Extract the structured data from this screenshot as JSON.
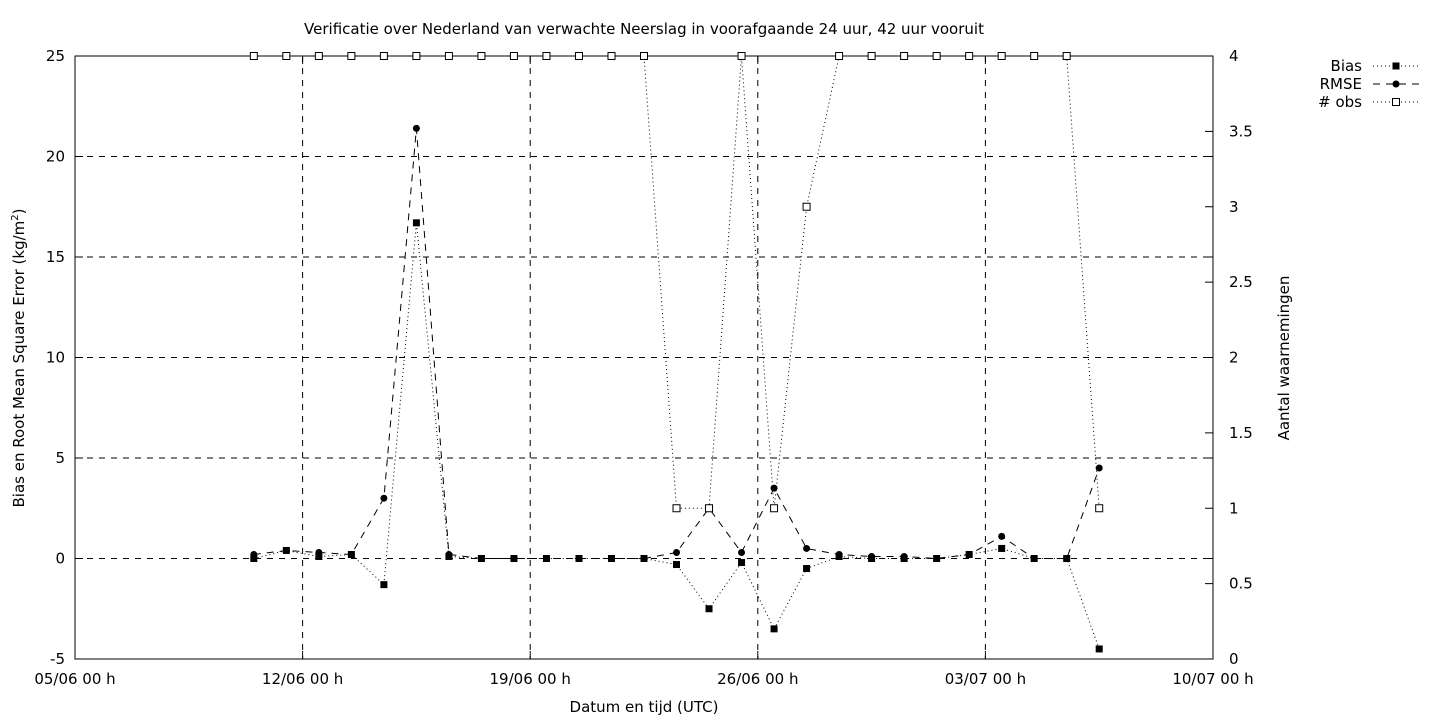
{
  "chart_data": {
    "type": "line",
    "title": "Verificatie over Nederland van verwachte Neerslag in voorafgaande 24 uur, 42 uur vooruit",
    "xlabel": "Datum en tijd (UTC)",
    "ylabel": "Bias en Root Mean Square Error (kg/m",
    "ylabel_sup": "2",
    "ylabel_close": ")",
    "y2label": "Aantal waarnemingen",
    "x_ticks": [
      "05/06 00 h",
      "12/06 00 h",
      "19/06 00 h",
      "26/06 00 h",
      "03/07 00 h",
      "10/07 00 h"
    ],
    "x_tick_days": [
      0,
      7,
      14,
      21,
      28,
      35
    ],
    "xlim_days": [
      0,
      35
    ],
    "x_origin_date": "05/06",
    "ylim": [
      -5,
      25
    ],
    "y_ticks": [
      -5,
      0,
      5,
      10,
      15,
      20,
      25
    ],
    "y2lim": [
      0,
      4
    ],
    "y2_ticks": [
      0,
      0.5,
      1,
      1.5,
      2,
      2.5,
      3,
      3.5,
      4
    ],
    "grid": true,
    "legend_position": "top-right, outside plot",
    "x_days": [
      5.5,
      6.5,
      7.5,
      8.5,
      9.5,
      10.5,
      11.5,
      12.5,
      13.5,
      14.5,
      15.5,
      16.5,
      17.5,
      18.5,
      19.5,
      20.5,
      21.5,
      22.5,
      23.5,
      24.5,
      25.5,
      26.5,
      27.5,
      28.5,
      29.5,
      30.5,
      31.5
    ],
    "series": [
      {
        "name": "Bias",
        "axis": "y1",
        "style": "dotted",
        "marker": "filled-square",
        "values": [
          0.0,
          0.4,
          0.1,
          0.2,
          -1.3,
          16.7,
          0.1,
          0.0,
          0.0,
          0.0,
          0.0,
          0.0,
          0.0,
          -0.3,
          -2.5,
          -0.2,
          -3.5,
          -0.5,
          0.1,
          0.0,
          0.0,
          0.0,
          0.2,
          0.5,
          0.0,
          0.0,
          -4.5
        ]
      },
      {
        "name": "RMSE",
        "axis": "y1",
        "style": "dashed",
        "marker": "filled-circle",
        "values": [
          0.2,
          0.4,
          0.3,
          0.2,
          3.0,
          21.4,
          0.2,
          0.0,
          0.0,
          0.0,
          0.0,
          0.0,
          0.0,
          0.3,
          2.5,
          0.3,
          3.5,
          0.5,
          0.2,
          0.1,
          0.1,
          0.0,
          0.2,
          1.1,
          0.0,
          0.0,
          4.5
        ]
      },
      {
        "name": "# obs",
        "axis": "y2",
        "style": "dotted",
        "marker": "open-square",
        "values": [
          4,
          4,
          4,
          4,
          4,
          4,
          4,
          4,
          4,
          4,
          4,
          4,
          4,
          1,
          1,
          4,
          1,
          3,
          4,
          4,
          4,
          4,
          4,
          4,
          4,
          4,
          1
        ]
      }
    ]
  }
}
